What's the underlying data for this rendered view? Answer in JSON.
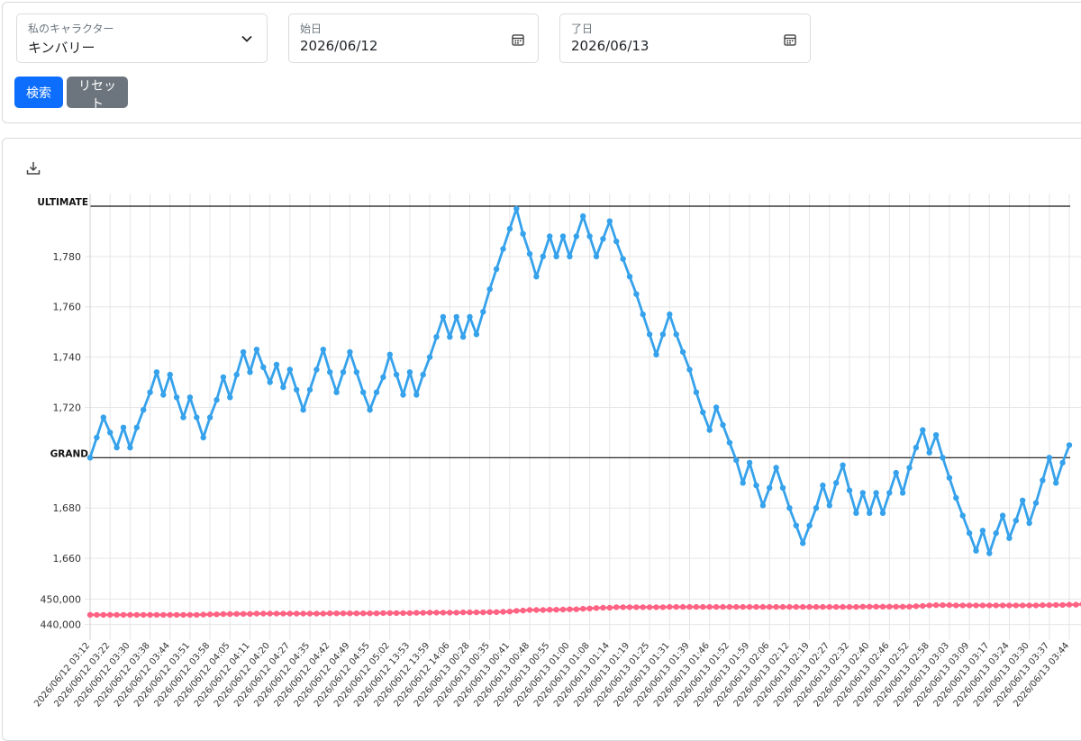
{
  "filters": {
    "character": {
      "label": "私のキャラクター",
      "value": "キンバリー"
    },
    "start_date": {
      "label": "始日",
      "value": "2026/06/12"
    },
    "end_date": {
      "label": "了日",
      "value": "2026/06/13"
    },
    "search_label": "検索",
    "reset_label": "リセット"
  },
  "icons": [
    "chevron-down-icon",
    "calendar-icon",
    "download-icon"
  ],
  "colors": {
    "primary": "#0d6efd",
    "secondary": "#6c757d",
    "series1": "#36a2eb",
    "series2": "#ff6384"
  },
  "chart_data": {
    "type": "line",
    "grid": true,
    "x_tick_labels": [
      "2026/06/12 03:12",
      "2026/06/12 03:22",
      "2026/06/12 03:30",
      "2026/06/12 03:38",
      "2026/06/12 03:44",
      "2026/06/12 03:51",
      "2026/06/12 03:58",
      "2026/06/12 04:05",
      "2026/06/12 04:11",
      "2026/06/12 04:20",
      "2026/06/12 04:27",
      "2026/06/12 04:35",
      "2026/06/12 04:42",
      "2026/06/12 04:49",
      "2026/06/12 04:55",
      "2026/06/12 05:02",
      "2026/06/12 13:53",
      "2026/06/12 13:59",
      "2026/06/12 14:06",
      "2026/06/13 00:28",
      "2026/06/13 00:35",
      "2026/06/13 00:41",
      "2026/06/13 00:48",
      "2026/06/13 00:55",
      "2026/06/13 01:00",
      "2026/06/13 01:08",
      "2026/06/13 01:14",
      "2026/06/13 01:19",
      "2026/06/13 01:25",
      "2026/06/13 01:31",
      "2026/06/13 01:39",
      "2026/06/13 01:46",
      "2026/06/13 01:52",
      "2026/06/13 01:59",
      "2026/06/13 02:06",
      "2026/06/13 02:12",
      "2026/06/13 02:19",
      "2026/06/13 02:27",
      "2026/06/13 02:32",
      "2026/06/13 02:40",
      "2026/06/13 02:46",
      "2026/06/13 02:52",
      "2026/06/13 02:58",
      "2026/06/13 03:03",
      "2026/06/13 03:09",
      "2026/06/13 03:17",
      "2026/06/13 03:24",
      "2026/06/13 03:30",
      "2026/06/13 03:37",
      "2026/06/13 03:44"
    ],
    "rating_axis": {
      "ticks": [
        1660,
        1680,
        1720,
        1740,
        1760,
        1780
      ],
      "tick_labels": [
        "1,660",
        "1,680",
        "1,720",
        "1,740",
        "1,760",
        "1,780"
      ],
      "ylim": [
        1650,
        1805
      ]
    },
    "reference_lines": [
      {
        "label": "ULTIMATE",
        "value": 1800
      },
      {
        "label": "GRAND",
        "value": 1700
      }
    ],
    "points_axis": {
      "ticks": [
        440000,
        450000
      ],
      "tick_labels": [
        "440,000",
        "450,000"
      ],
      "ylim": [
        436000,
        454000
      ]
    },
    "series": [
      {
        "axis": "rating",
        "color": "#36a2eb",
        "values": [
          1700,
          1708,
          1716,
          1710,
          1704,
          1712,
          1704,
          1712,
          1719,
          1726,
          1734,
          1725,
          1733,
          1724,
          1716,
          1724,
          1716,
          1708,
          1716,
          1723,
          1732,
          1724,
          1733,
          1742,
          1734,
          1743,
          1736,
          1730,
          1737,
          1728,
          1735,
          1727,
          1719,
          1727,
          1735,
          1743,
          1734,
          1726,
          1734,
          1742,
          1734,
          1726,
          1719,
          1726,
          1732,
          1741,
          1733,
          1725,
          1734,
          1725,
          1733,
          1740,
          1748,
          1756,
          1748,
          1756,
          1748,
          1756,
          1749,
          1758,
          1767,
          1775,
          1783,
          1791,
          1799,
          1789,
          1781,
          1772,
          1780,
          1788,
          1780,
          1788,
          1780,
          1788,
          1796,
          1788,
          1780,
          1787,
          1794,
          1786,
          1779,
          1772,
          1765,
          1757,
          1749,
          1741,
          1749,
          1757,
          1749,
          1742,
          1735,
          1726,
          1718,
          1711,
          1720,
          1713,
          1706,
          1699,
          1690,
          1698,
          1689,
          1681,
          1688,
          1696,
          1688,
          1680,
          1673,
          1666,
          1673,
          1680,
          1689,
          1681,
          1690,
          1697,
          1687,
          1678,
          1686,
          1678,
          1686,
          1678,
          1686,
          1694,
          1686,
          1696,
          1704,
          1711,
          1702,
          1709,
          1700,
          1692,
          1684,
          1677,
          1670,
          1663,
          1671,
          1662,
          1670,
          1677,
          1668,
          1675,
          1683,
          1674,
          1682,
          1691,
          1700,
          1690,
          1698,
          1705
        ]
      },
      {
        "axis": "points",
        "color": "#ff6384",
        "values": [
          443800,
          443800,
          443800,
          443800,
          443800,
          443800,
          443800,
          443800,
          443800,
          443800,
          443800,
          443800,
          443800,
          443800,
          443800,
          443800,
          443800,
          443900,
          444000,
          444000,
          444100,
          444100,
          444200,
          444200,
          444200,
          444300,
          444300,
          444300,
          444300,
          444300,
          444300,
          444300,
          444300,
          444300,
          444300,
          444300,
          444400,
          444400,
          444400,
          444400,
          444400,
          444400,
          444400,
          444400,
          444500,
          444500,
          444500,
          444500,
          444500,
          444600,
          444600,
          444700,
          444700,
          444700,
          444700,
          444700,
          444800,
          444800,
          444800,
          444800,
          444900,
          444900,
          445000,
          445100,
          445400,
          445500,
          445700,
          445700,
          445700,
          445800,
          445800,
          445900,
          446000,
          446000,
          446200,
          446300,
          446500,
          446600,
          446600,
          446800,
          446800,
          446800,
          446800,
          446800,
          446800,
          446800,
          446800,
          446900,
          446900,
          446900,
          446900,
          446900,
          446900,
          446900,
          446900,
          446900,
          446900,
          446900,
          446900,
          446900,
          446900,
          446900,
          446900,
          446900,
          446900,
          446900,
          446900,
          446900,
          446900,
          446900,
          446900,
          446900,
          446900,
          446900,
          446900,
          446900,
          447000,
          447000,
          447000,
          447000,
          447000,
          447000,
          447000,
          447000,
          447200,
          447300,
          447500,
          447600,
          447600,
          447600,
          447500,
          447500,
          447500,
          447500,
          447500,
          447500,
          447500,
          447500,
          447500,
          447500,
          447500,
          447500,
          447500,
          447600,
          447600,
          447700,
          447700,
          447800,
          447800,
          448000
        ]
      }
    ]
  }
}
